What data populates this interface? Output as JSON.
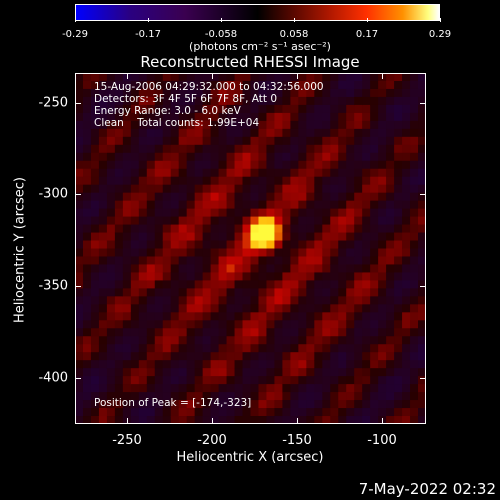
{
  "colorbar": {
    "ticks": [
      "-0.29",
      "-0.17",
      "-0.058",
      "0.058",
      "0.17",
      "0.29"
    ],
    "unit_label": "(photons cm⁻² s⁻¹ asec⁻²)"
  },
  "title": "Reconstructed RHESSI Image",
  "info": {
    "line1": "15-Aug-2006 04:29:32.000 to 04:32:56.000",
    "line2": "Detectors: 3F 4F 5F 6F 7F 8F, Att 0",
    "line3": "Energy Range: 3.0 - 6.0 keV",
    "line4": "Clean    Total counts: 1.99E+04",
    "peak": "Position of Peak = [-174,-323]"
  },
  "axes": {
    "xlabel": "Heliocentric X (arcsec)",
    "ylabel": "Heliocentric Y (arcsec)",
    "xticks": [
      "-250",
      "-200",
      "-150",
      "-100"
    ],
    "yticks": [
      "-250",
      "-300",
      "-350",
      "-400"
    ]
  },
  "timestamp": "7-May-2022 02:32",
  "colors": {
    "background": "#000000",
    "text": "#ffffff"
  }
}
